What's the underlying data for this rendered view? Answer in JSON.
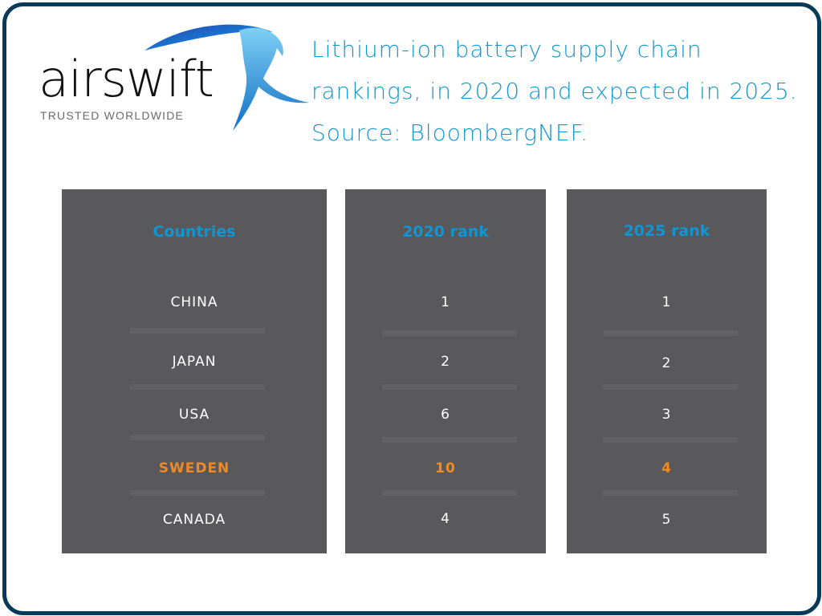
{
  "brand": {
    "name": "airswift",
    "tagline": "TRUSTED WORLDWIDE"
  },
  "title": "Lithium-ion battery supply chain rankings, in 2020 and expected in 2025. Source: BloombergNEF.",
  "colors": {
    "frame": "#063a58",
    "panel": "#59585a",
    "accent": "#1196d3",
    "highlight": "#f08a24",
    "text": "#ffffff"
  },
  "chart_data": {
    "type": "table",
    "columns": [
      "Countries",
      "2020 rank",
      "2025 rank"
    ],
    "rows": [
      {
        "country": "CHINA",
        "rank_2020": "1",
        "rank_2025": "1",
        "highlight": false
      },
      {
        "country": "JAPAN",
        "rank_2020": "2",
        "rank_2025": "2",
        "highlight": false
      },
      {
        "country": "USA",
        "rank_2020": "6",
        "rank_2025": "3",
        "highlight": false
      },
      {
        "country": "SWEDEN",
        "rank_2020": "10",
        "rank_2025": "4",
        "highlight": true
      },
      {
        "country": "CANADA",
        "rank_2020": "4",
        "rank_2025": "5",
        "highlight": false
      }
    ]
  }
}
